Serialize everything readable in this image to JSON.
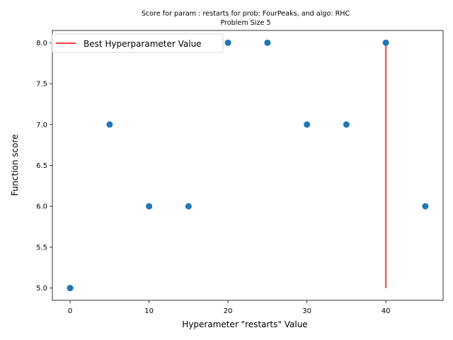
{
  "chart_data": {
    "type": "scatter",
    "title_line1": "Score for param : restarts for prob: FourPeaks, and algo: RHC",
    "title_line2": "Problem Size 5",
    "xlabel": "Hyperameter \"restarts\" Value",
    "ylabel": "Function score",
    "xlim": [
      -2.25,
      47.25
    ],
    "ylim": [
      4.85,
      8.15
    ],
    "x_ticks": [
      0,
      10,
      20,
      30,
      40
    ],
    "y_ticks": [
      5.0,
      5.5,
      6.0,
      6.5,
      7.0,
      7.5,
      8.0
    ],
    "x_tick_labels": [
      "0",
      "10",
      "20",
      "30",
      "40"
    ],
    "y_tick_labels": [
      "5.0",
      "5.5",
      "6.0",
      "6.5",
      "7.0",
      "7.5",
      "8.0"
    ],
    "series": [
      {
        "x": [
          0,
          5,
          10,
          15,
          20,
          25,
          30,
          35,
          40,
          45
        ],
        "y": [
          5,
          7,
          6,
          6,
          8,
          8,
          7,
          7,
          8,
          6
        ],
        "color": "#1f77b4"
      }
    ],
    "best_line": {
      "name": "Best Hyperparameter Value",
      "x": 40,
      "y_range": [
        5,
        8
      ],
      "color": "#ff0000"
    },
    "legend": {
      "placement": "upper-left",
      "label": "Best Hyperparameter Value"
    },
    "grid": false
  }
}
